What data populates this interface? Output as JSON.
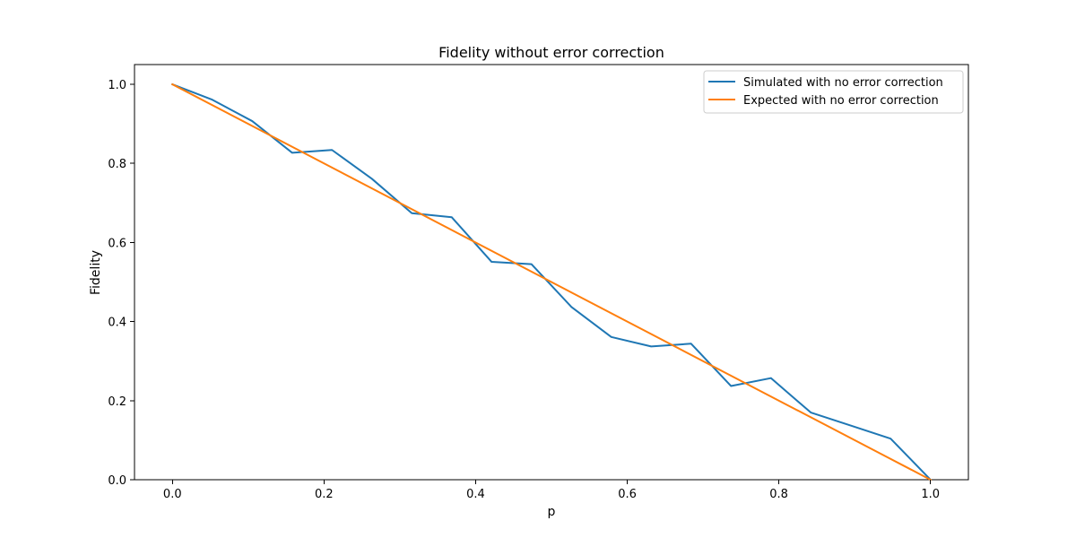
{
  "chart_data": {
    "type": "line",
    "title": "Fidelity without error correction",
    "xlabel": "p",
    "ylabel": "Fidelity",
    "xlim": [
      -0.05,
      1.05
    ],
    "ylim": [
      0.0,
      1.05
    ],
    "xticks": [
      0.0,
      0.2,
      0.4,
      0.6,
      0.8,
      1.0
    ],
    "xtick_labels": [
      "0.0",
      "0.2",
      "0.4",
      "0.6",
      "0.8",
      "1.0"
    ],
    "yticks": [
      0.0,
      0.2,
      0.4,
      0.6,
      0.8,
      1.0
    ],
    "ytick_labels": [
      "0.0",
      "0.2",
      "0.4",
      "0.6",
      "0.8",
      "1.0"
    ],
    "grid": false,
    "legend_position": "top-right",
    "series": [
      {
        "name": "Simulated with no error correction",
        "color": "#1f77b4",
        "x": [
          0.0,
          0.0526,
          0.1053,
          0.1579,
          0.2105,
          0.2632,
          0.3158,
          0.3684,
          0.4211,
          0.4737,
          0.5263,
          0.5789,
          0.6316,
          0.6842,
          0.7368,
          0.7895,
          0.8421,
          0.8947,
          0.9474,
          1.0
        ],
        "y": [
          1.0,
          0.961,
          0.907,
          0.827,
          0.834,
          0.761,
          0.674,
          0.664,
          0.551,
          0.545,
          0.437,
          0.361,
          0.337,
          0.344,
          0.237,
          0.257,
          0.17,
          0.137,
          0.104,
          0.0
        ]
      },
      {
        "name": "Expected with no error correction",
        "color": "#ff7f0e",
        "x": [
          0.0,
          1.0
        ],
        "y": [
          1.0,
          0.0
        ]
      }
    ]
  }
}
